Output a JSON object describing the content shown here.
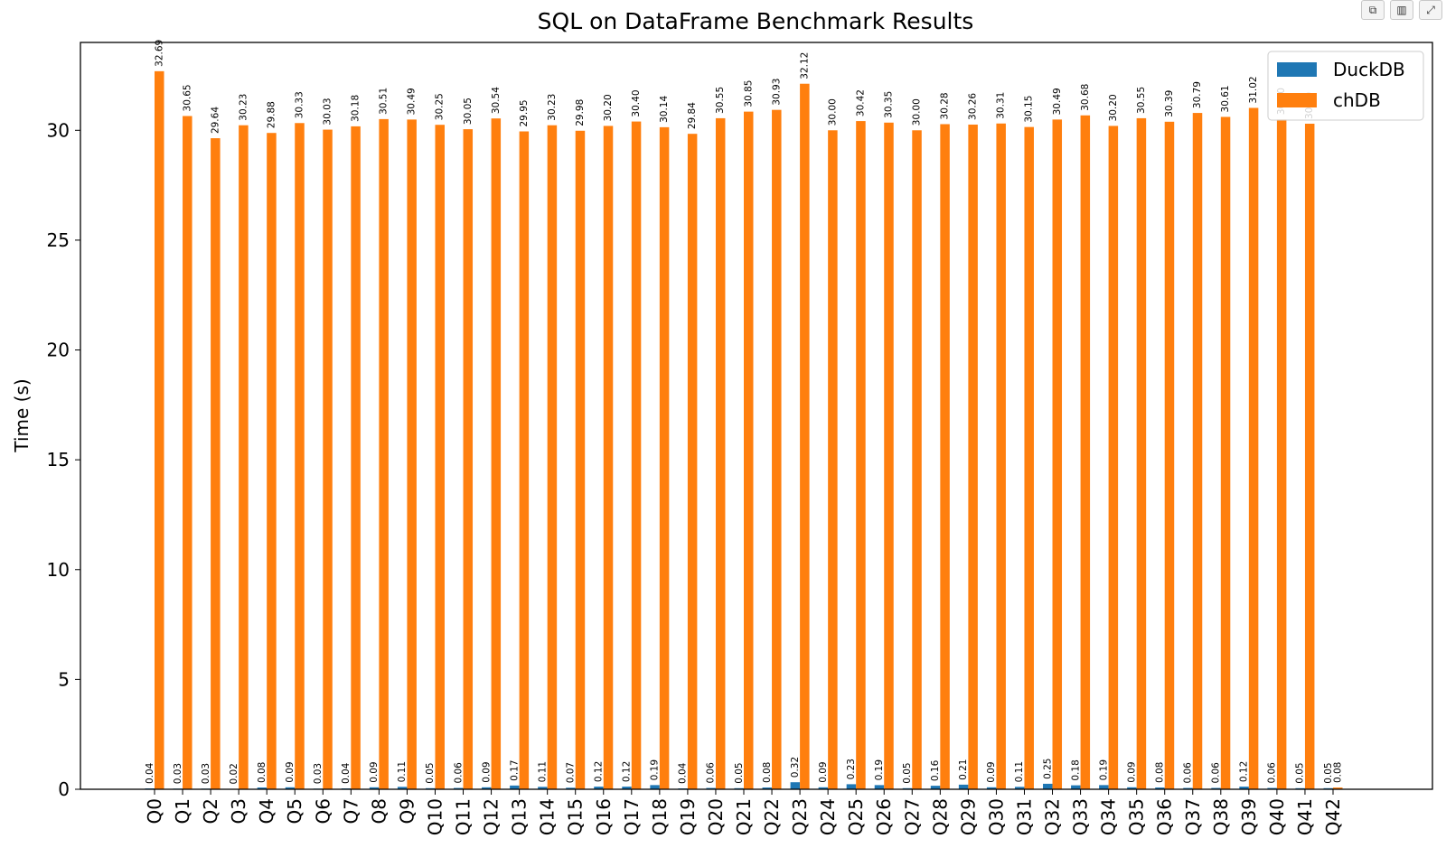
{
  "toolbar": {
    "buttons": [
      {
        "name": "copy-icon",
        "glyph": "⧉"
      },
      {
        "name": "bar-chart-icon",
        "glyph": "▥"
      },
      {
        "name": "expand-icon",
        "glyph": "⤢"
      }
    ]
  },
  "colors": {
    "duckdb": "#1f77b4",
    "chdb": "#ff7f0e"
  },
  "chart_data": {
    "type": "bar",
    "title": "SQL on DataFrame Benchmark Results",
    "xlabel": "",
    "ylabel": "Time (s)",
    "ylim": [
      0,
      34
    ],
    "yticks": [
      0,
      5,
      10,
      15,
      20,
      25,
      30
    ],
    "grid": false,
    "legend": "top-right",
    "categories": [
      "Q0",
      "Q1",
      "Q2",
      "Q3",
      "Q4",
      "Q5",
      "Q6",
      "Q7",
      "Q8",
      "Q9",
      "Q10",
      "Q11",
      "Q12",
      "Q13",
      "Q14",
      "Q15",
      "Q16",
      "Q17",
      "Q18",
      "Q19",
      "Q20",
      "Q21",
      "Q22",
      "Q23",
      "Q24",
      "Q25",
      "Q26",
      "Q27",
      "Q28",
      "Q29",
      "Q30",
      "Q31",
      "Q32",
      "Q33",
      "Q34",
      "Q35",
      "Q36",
      "Q37",
      "Q38",
      "Q39",
      "Q40",
      "Q41",
      "Q42"
    ],
    "series": [
      {
        "name": "DuckDB",
        "values": [
          0.04,
          0.03,
          0.03,
          0.02,
          0.08,
          0.09,
          0.03,
          0.04,
          0.09,
          0.11,
          0.05,
          0.06,
          0.09,
          0.17,
          0.11,
          0.07,
          0.12,
          0.12,
          0.19,
          0.04,
          0.06,
          0.05,
          0.08,
          0.32,
          0.09,
          0.23,
          0.19,
          0.05,
          0.16,
          0.21,
          0.09,
          0.11,
          0.25,
          0.18,
          0.19,
          0.09,
          0.08,
          0.06,
          0.06,
          0.12,
          0.06,
          0.05,
          0.05
        ]
      },
      {
        "name": "chDB",
        "values": [
          32.69,
          30.65,
          29.64,
          30.23,
          29.88,
          30.33,
          30.03,
          30.18,
          30.51,
          30.49,
          30.25,
          30.05,
          30.54,
          29.95,
          30.23,
          29.98,
          30.2,
          30.4,
          30.14,
          29.84,
          30.55,
          30.85,
          30.93,
          32.12,
          30.0,
          30.42,
          30.35,
          30.0,
          30.28,
          30.26,
          30.31,
          30.15,
          30.49,
          30.68,
          30.2,
          30.55,
          30.39,
          30.79,
          30.61,
          31.02,
          30.5,
          30.3,
          0.08
        ]
      }
    ]
  }
}
